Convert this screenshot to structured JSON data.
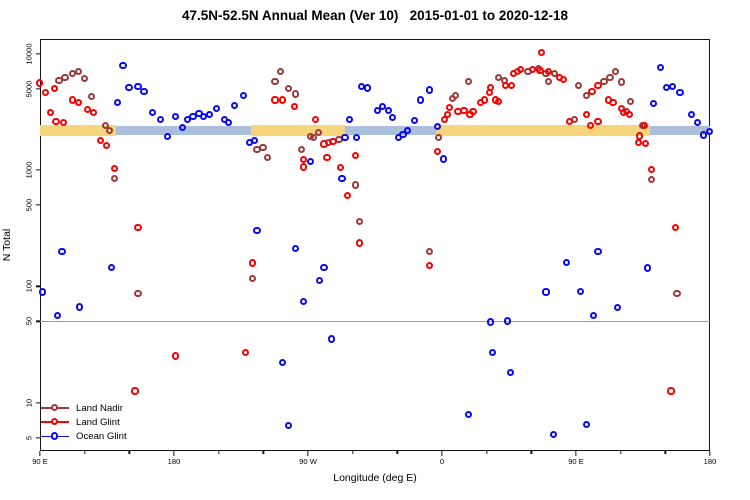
{
  "title": "47.5N-52.5N Annual Mean (Ver 10)   2015-01-01 to 2020-12-18",
  "x_axis_title": "Longitude (deg E)",
  "y_axis_title": "N Total",
  "chart_data": {
    "type": "scatter",
    "title": "47.5N-52.5N Annual Mean (Ver 10)   2015-01-01 to 2020-12-18",
    "xlabel": "Longitude (deg E)",
    "ylabel": "N Total",
    "y_scale": "log",
    "ylim": [
      3.8,
      13500
    ],
    "xlim_deg_extended": [
      90,
      540
    ],
    "grid": false,
    "legend_position": "bottom-left",
    "x_axis": {
      "minor_step_deg": 30,
      "ticks": [
        {
          "lon": 90,
          "label": "90 E"
        },
        {
          "lon": 180,
          "label": "180"
        },
        {
          "lon": 270,
          "label": "90 W"
        },
        {
          "lon": 360,
          "label": "0"
        },
        {
          "lon": 450,
          "label": "90 E"
        },
        {
          "lon": 540,
          "label": "180"
        }
      ]
    },
    "y_axis": {
      "ticks": [
        10000,
        5000,
        1000,
        500,
        100,
        50,
        10,
        5
      ]
    },
    "reference_line": {
      "value": 50,
      "color": "#9b9b9b"
    },
    "bands": [
      {
        "name": "land-mean-band",
        "color": "#f7d57c",
        "value_range": [
          1970,
          2450
        ],
        "segments": [
          [
            90,
            141
          ],
          [
            232,
            295
          ],
          [
            356,
            500
          ]
        ]
      },
      {
        "name": "ocean-mean-band",
        "color": "#a9bfdb",
        "value_range": [
          2010,
          2380
        ],
        "segments": [
          [
            141,
            232
          ],
          [
            295,
            356
          ],
          [
            500,
            540
          ]
        ]
      }
    ],
    "series": [
      {
        "id": "land-nadir",
        "name": "Land Nadir",
        "color": "#9c3a3a",
        "points": [
          [
            103,
            5900
          ],
          [
            107,
            6200
          ],
          [
            112,
            6700
          ],
          [
            116,
            7000
          ],
          [
            120,
            6100
          ],
          [
            125,
            4300
          ],
          [
            134,
            2400
          ],
          [
            137,
            2200
          ],
          [
            140,
            840
          ],
          [
            156,
            87
          ],
          [
            233,
            116
          ],
          [
            236,
            1500
          ],
          [
            240,
            1560
          ],
          [
            243,
            1280
          ],
          [
            248,
            5800
          ],
          [
            252,
            7000
          ],
          [
            257,
            5000
          ],
          [
            262,
            4500
          ],
          [
            266,
            1500
          ],
          [
            272,
            1940
          ],
          [
            274,
            1900
          ],
          [
            277,
            2100
          ],
          [
            284,
            1730
          ],
          [
            291,
            1840
          ],
          [
            302,
            740
          ],
          [
            305,
            360
          ],
          [
            352,
            200
          ],
          [
            358,
            1900
          ],
          [
            367,
            4100
          ],
          [
            369,
            4400
          ],
          [
            378,
            5800
          ],
          [
            398,
            6200
          ],
          [
            402,
            5900
          ],
          [
            411,
            7000
          ],
          [
            418,
            7000
          ],
          [
            425,
            7500
          ],
          [
            430,
            6800
          ],
          [
            432,
            5800
          ],
          [
            436,
            6700
          ],
          [
            449,
            2700
          ],
          [
            452,
            5300
          ],
          [
            457,
            4400
          ],
          [
            469,
            5800
          ],
          [
            473,
            6200
          ],
          [
            477,
            7000
          ],
          [
            481,
            5700
          ],
          [
            484,
            3200
          ],
          [
            487,
            3900
          ],
          [
            495,
            2400
          ],
          [
            501,
            830
          ],
          [
            518,
            87
          ]
        ]
      },
      {
        "id": "land-glint",
        "name": "Land Glint",
        "color": "#fa0000",
        "points": [
          [
            90,
            5600
          ],
          [
            94,
            4600
          ],
          [
            97,
            3100
          ],
          [
            100,
            5000
          ],
          [
            101,
            2600
          ],
          [
            106,
            2540
          ],
          [
            112,
            4000
          ],
          [
            116,
            3800
          ],
          [
            122,
            3300
          ],
          [
            126,
            3100
          ],
          [
            131,
            1800
          ],
          [
            135,
            1620
          ],
          [
            140,
            1020
          ],
          [
            154,
            12.5
          ],
          [
            156,
            320
          ],
          [
            181,
            25
          ],
          [
            228,
            27
          ],
          [
            233,
            158
          ],
          [
            248,
            4000
          ],
          [
            253,
            4000
          ],
          [
            261,
            3500
          ],
          [
            267,
            1220
          ],
          [
            267,
            1060
          ],
          [
            275,
            2700
          ],
          [
            281,
            1670
          ],
          [
            283,
            1280
          ],
          [
            287,
            1760
          ],
          [
            292,
            1050
          ],
          [
            297,
            600
          ],
          [
            302,
            1330
          ],
          [
            305,
            235
          ],
          [
            352,
            150
          ],
          [
            357,
            1450
          ],
          [
            362,
            2700
          ],
          [
            364,
            3000
          ],
          [
            365,
            3470
          ],
          [
            371,
            3200
          ],
          [
            375,
            3260
          ],
          [
            379,
            3000
          ],
          [
            381,
            3180
          ],
          [
            386,
            3800
          ],
          [
            389,
            4000
          ],
          [
            392,
            4650
          ],
          [
            393,
            5100
          ],
          [
            396,
            4000
          ],
          [
            398,
            3900
          ],
          [
            403,
            5300
          ],
          [
            407,
            5300
          ],
          [
            408,
            6700
          ],
          [
            413,
            7300
          ],
          [
            421,
            7300
          ],
          [
            426,
            7200
          ],
          [
            427,
            10200
          ],
          [
            432,
            7000
          ],
          [
            439,
            6200
          ],
          [
            442,
            6000
          ],
          [
            446,
            2620
          ],
          [
            457,
            3000
          ],
          [
            460,
            2400
          ],
          [
            461,
            4700
          ],
          [
            465,
            5300
          ],
          [
            465,
            2600
          ],
          [
            472,
            4000
          ],
          [
            475,
            3800
          ],
          [
            481,
            3400
          ],
          [
            482,
            3100
          ],
          [
            486,
            3000
          ],
          [
            492,
            1730
          ],
          [
            493,
            1960
          ],
          [
            496,
            2400
          ],
          [
            497,
            1700
          ],
          [
            501,
            1000
          ],
          [
            514,
            12.5
          ],
          [
            517,
            320
          ]
        ]
      },
      {
        "id": "ocean-glint",
        "name": "Ocean Glint",
        "color": "#0a0af0",
        "points": [
          [
            92,
            89
          ],
          [
            102,
            56
          ],
          [
            105,
            200
          ],
          [
            117,
            66
          ],
          [
            138,
            145
          ],
          [
            142,
            3800
          ],
          [
            146,
            7900
          ],
          [
            150,
            5100
          ],
          [
            156,
            5200
          ],
          [
            160,
            4700
          ],
          [
            166,
            3100
          ],
          [
            171,
            2700
          ],
          [
            176,
            1930
          ],
          [
            181,
            2870
          ],
          [
            186,
            2330
          ],
          [
            189,
            2730
          ],
          [
            193,
            2900
          ],
          [
            197,
            3040
          ],
          [
            200,
            2900
          ],
          [
            204,
            3000
          ],
          [
            209,
            3400
          ],
          [
            214,
            2700
          ],
          [
            217,
            2560
          ],
          [
            221,
            3600
          ],
          [
            227,
            4400
          ],
          [
            231,
            1730
          ],
          [
            234,
            1800
          ],
          [
            236,
            300
          ],
          [
            253,
            22
          ],
          [
            257,
            6.3
          ],
          [
            262,
            212
          ],
          [
            267,
            74
          ],
          [
            272,
            1190
          ],
          [
            278,
            112
          ],
          [
            281,
            145
          ],
          [
            286,
            35
          ],
          [
            293,
            850
          ],
          [
            295,
            1890
          ],
          [
            298,
            2730
          ],
          [
            303,
            1900
          ],
          [
            306,
            5250
          ],
          [
            310,
            5070
          ],
          [
            317,
            3230
          ],
          [
            320,
            3500
          ],
          [
            324,
            3230
          ],
          [
            327,
            2830
          ],
          [
            331,
            1890
          ],
          [
            334,
            2030
          ],
          [
            337,
            2200
          ],
          [
            342,
            2680
          ],
          [
            346,
            4000
          ],
          [
            352,
            4870
          ],
          [
            357,
            2360
          ],
          [
            361,
            1240
          ],
          [
            378,
            7.8
          ],
          [
            393,
            49
          ],
          [
            394,
            27
          ],
          [
            404,
            50
          ],
          [
            406,
            18
          ],
          [
            430,
            89
          ],
          [
            435,
            5.3
          ],
          [
            444,
            160
          ],
          [
            453,
            90
          ],
          [
            457,
            6.4
          ],
          [
            462,
            56
          ],
          [
            465,
            197
          ],
          [
            478,
            65
          ],
          [
            498,
            143
          ],
          [
            502,
            3700
          ],
          [
            507,
            7600
          ],
          [
            511,
            5100
          ],
          [
            515,
            5250
          ],
          [
            520,
            4600
          ],
          [
            528,
            3000
          ],
          [
            532,
            2570
          ],
          [
            536,
            2000
          ],
          [
            540,
            2150
          ]
        ]
      }
    ]
  }
}
